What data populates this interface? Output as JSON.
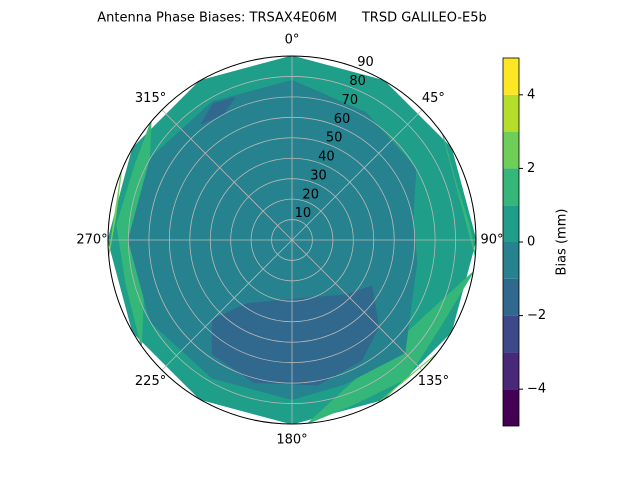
{
  "chart_data": {
    "type": "polar-contour",
    "title": "Antenna Phase Biases: TRSAX4E06M      TRSD GALILEO-E5b",
    "rlim": [
      0,
      90
    ],
    "rticks": [
      10,
      20,
      30,
      40,
      50,
      60,
      70,
      80,
      90
    ],
    "thetaticks": [
      {
        "value": 0,
        "label": "0°"
      },
      {
        "value": 45,
        "label": "45°"
      },
      {
        "value": 90,
        "label": "90°"
      },
      {
        "value": 135,
        "label": "135°"
      },
      {
        "value": 180,
        "label": "180°"
      },
      {
        "value": 225,
        "label": "225°"
      },
      {
        "value": 270,
        "label": "270°"
      },
      {
        "value": 315,
        "label": "315°"
      }
    ],
    "grid": true,
    "regions": [
      {
        "level": 0,
        "points": [
          [
            0,
            90
          ],
          [
            30,
            90
          ],
          [
            60,
            90
          ],
          [
            90,
            90
          ],
          [
            120,
            90
          ],
          [
            150,
            90
          ],
          [
            180,
            90
          ],
          [
            210,
            90
          ],
          [
            240,
            90
          ],
          [
            270,
            90
          ],
          [
            300,
            90
          ],
          [
            330,
            90
          ]
        ]
      },
      {
        "level": 1,
        "points": [
          [
            235,
            90
          ],
          [
            255,
            84
          ],
          [
            275,
            86
          ],
          [
            295,
            85
          ],
          [
            310,
            90
          ]
        ]
      },
      {
        "level": 1,
        "points": [
          [
            100,
            90
          ],
          [
            120,
            84
          ],
          [
            140,
            88
          ],
          [
            160,
            86
          ],
          [
            175,
            90
          ]
        ]
      },
      {
        "level": 1,
        "points": [
          [
            55,
            90
          ],
          [
            70,
            85
          ],
          [
            85,
            87
          ],
          [
            95,
            90
          ]
        ]
      },
      {
        "level": 2,
        "points": [
          [
            265,
            90
          ],
          [
            278,
            87
          ],
          [
            292,
            90
          ]
        ]
      },
      {
        "level": 2,
        "points": [
          [
            128,
            90
          ],
          [
            140,
            88
          ],
          [
            152,
            90
          ]
        ]
      },
      {
        "level": -1,
        "points": [
          [
            0,
            78
          ],
          [
            30,
            72
          ],
          [
            60,
            70
          ],
          [
            80,
            60
          ],
          [
            100,
            62
          ],
          [
            135,
            78
          ],
          [
            160,
            75
          ],
          [
            180,
            78
          ],
          [
            210,
            78
          ],
          [
            240,
            80
          ],
          [
            270,
            80
          ],
          [
            300,
            80
          ],
          [
            330,
            78
          ]
        ]
      },
      {
        "level": -2,
        "points": [
          [
            120,
            45
          ],
          [
            135,
            60
          ],
          [
            150,
            68
          ],
          [
            170,
            72
          ],
          [
            195,
            72
          ],
          [
            215,
            68
          ],
          [
            225,
            55
          ],
          [
            215,
            38
          ],
          [
            190,
            30
          ],
          [
            160,
            30
          ],
          [
            135,
            38
          ]
        ]
      },
      {
        "level": -2,
        "points": [
          [
            322,
            72
          ],
          [
            330,
            77
          ],
          [
            338,
            75
          ],
          [
            331,
            70
          ]
        ]
      }
    ],
    "colorbar": {
      "label": "Bias (mm)",
      "levels": [
        -5,
        -4,
        -3,
        -2,
        -1,
        0,
        1,
        2,
        3,
        4,
        5
      ],
      "colors": [
        "#440154",
        "#482878",
        "#3e4989",
        "#31688e",
        "#26828e",
        "#1f9e89",
        "#35b779",
        "#6ece58",
        "#b5de2b",
        "#fde725"
      ],
      "ticks": [
        {
          "value": -4,
          "label": "−4"
        },
        {
          "value": -2,
          "label": "−2"
        },
        {
          "value": 0,
          "label": "0"
        },
        {
          "value": 2,
          "label": "2"
        },
        {
          "value": 4,
          "label": "4"
        }
      ]
    }
  }
}
